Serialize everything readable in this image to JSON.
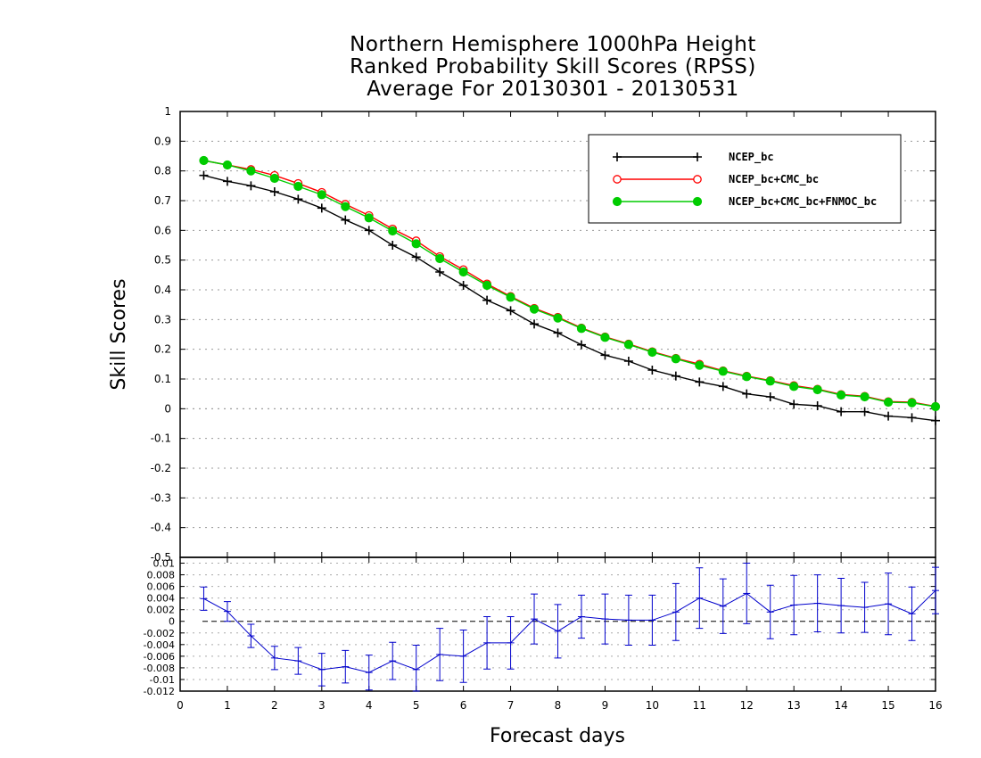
{
  "titles": {
    "line1": "Northern Hemisphere 1000hPa Height",
    "line2": "Ranked Probability Skill Scores (RPSS)",
    "line3": "Average For 20130301 - 20130531"
  },
  "chart_data": [
    {
      "type": "line",
      "ylabel": "Skill Scores",
      "xlabel": "Forecast days",
      "ylim": [
        -0.5,
        1
      ],
      "yticks": [
        "1",
        "0.9",
        "0.8",
        "0.7",
        "0.6",
        "0.5",
        "0.4",
        "0.3",
        "0.2",
        "0.1",
        "0",
        "-0.1",
        "-0.2",
        "-0.3",
        "-0.4",
        "-0.5"
      ],
      "grid": true,
      "legend_position": "top-right",
      "x": [
        0.5,
        1,
        1.5,
        2,
        2.5,
        3,
        3.5,
        4,
        4.5,
        5,
        5.5,
        6,
        6.5,
        7,
        7.5,
        8,
        8.5,
        9,
        9.5,
        10,
        10.5,
        11,
        11.5,
        12,
        12.5,
        13,
        13.5,
        14,
        14.5,
        15,
        15.5,
        16
      ],
      "series": [
        {
          "name": "NCEP_bc",
          "color": "#000000",
          "marker": "plus",
          "values": [
            0.785,
            0.765,
            0.75,
            0.73,
            0.705,
            0.675,
            0.635,
            0.6,
            0.55,
            0.51,
            0.46,
            0.415,
            0.365,
            0.33,
            0.285,
            0.255,
            0.215,
            0.18,
            0.16,
            0.13,
            0.11,
            0.09,
            0.075,
            0.05,
            0.04,
            0.015,
            0.01,
            -0.01,
            -0.01,
            -0.025,
            -0.03,
            -0.04
          ]
        },
        {
          "name": "NCEP_bc+CMC_bc",
          "color": "#ff0000",
          "marker": "open-circle",
          "values": [
            0.835,
            0.82,
            0.805,
            0.785,
            0.758,
            0.728,
            0.688,
            0.65,
            0.605,
            0.565,
            0.512,
            0.468,
            0.42,
            0.378,
            0.338,
            0.308,
            0.272,
            0.242,
            0.218,
            0.192,
            0.17,
            0.15,
            0.128,
            0.11,
            0.095,
            0.078,
            0.066,
            0.048,
            0.042,
            0.024,
            0.022,
            0.008
          ]
        },
        {
          "name": "NCEP_bc+CMC_bc+FNMOC_bc",
          "color": "#00cc00",
          "marker": "filled-circle",
          "values": [
            0.835,
            0.82,
            0.8,
            0.775,
            0.748,
            0.72,
            0.68,
            0.642,
            0.598,
            0.555,
            0.505,
            0.46,
            0.415,
            0.375,
            0.335,
            0.305,
            0.27,
            0.24,
            0.216,
            0.19,
            0.168,
            0.146,
            0.126,
            0.108,
            0.093,
            0.075,
            0.064,
            0.046,
            0.04,
            0.022,
            0.02,
            0.007
          ]
        }
      ]
    },
    {
      "type": "line",
      "xlabel": "Forecast days",
      "ylim": [
        -0.012,
        0.011
      ],
      "yticks": [
        "0.01",
        "0.008",
        "0.006",
        "0.004",
        "0.002",
        "0",
        "-0.002",
        "-0.004",
        "-0.006",
        "-0.008",
        "-0.01",
        "-0.012"
      ],
      "xticks": [
        "0",
        "1",
        "2",
        "3",
        "4",
        "5",
        "6",
        "7",
        "8",
        "9",
        "10",
        "11",
        "12",
        "13",
        "14",
        "15",
        "16"
      ],
      "reference_line": 0,
      "color": "#0000cc",
      "x": [
        0.5,
        1,
        1.5,
        2,
        2.5,
        3,
        3.5,
        4,
        4.5,
        5,
        5.5,
        6,
        6.5,
        7,
        7.5,
        8,
        8.5,
        9,
        9.5,
        10,
        10.5,
        11,
        11.5,
        12,
        12.5,
        13,
        13.5,
        14,
        14.5,
        15,
        15.5,
        16
      ],
      "values": [
        0.0039,
        0.0017,
        -0.0025,
        -0.0063,
        -0.0068,
        -0.0083,
        -0.0078,
        -0.0088,
        -0.0068,
        -0.0083,
        -0.0057,
        -0.006,
        -0.0037,
        -0.0037,
        0.0004,
        -0.0017,
        0.0008,
        0.0004,
        0.0002,
        0.0002,
        0.0016,
        0.004,
        0.0026,
        0.0048,
        0.0016,
        0.0028,
        0.0031,
        0.0027,
        0.0024,
        0.003,
        0.0013,
        0.0053
      ],
      "error": [
        0.002,
        0.0017,
        0.002,
        0.002,
        0.0023,
        0.0028,
        0.0028,
        0.003,
        0.0032,
        0.0042,
        0.0045,
        0.0045,
        0.0045,
        0.0045,
        0.0043,
        0.0046,
        0.0037,
        0.0043,
        0.0043,
        0.0043,
        0.0049,
        0.0052,
        0.0047,
        0.0052,
        0.0046,
        0.0051,
        0.0049,
        0.0047,
        0.0043,
        0.0053,
        0.0046,
        0.004
      ]
    }
  ]
}
